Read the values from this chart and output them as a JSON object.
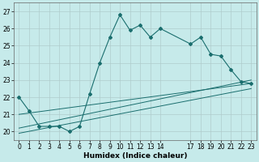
{
  "xlabel": "Humidex (Indice chaleur)",
  "xlim": [
    -0.5,
    23.5
  ],
  "ylim": [
    19.5,
    27.5
  ],
  "yticks": [
    20,
    21,
    22,
    23,
    24,
    25,
    26,
    27
  ],
  "xticks": [
    0,
    1,
    2,
    3,
    4,
    5,
    6,
    7,
    8,
    9,
    10,
    11,
    12,
    13,
    14,
    17,
    18,
    19,
    20,
    21,
    22,
    23
  ],
  "bg_color": "#c6eaea",
  "grid_color": "#b0cccc",
  "line_color": "#1a6e6e",
  "main_x": [
    0,
    1,
    2,
    3,
    4,
    5,
    6,
    7,
    8,
    9,
    10,
    11,
    12,
    13,
    14,
    17,
    18,
    19,
    20,
    21,
    22,
    23
  ],
  "main_y": [
    22.0,
    21.2,
    20.3,
    20.3,
    20.3,
    20.0,
    20.3,
    22.2,
    24.0,
    25.5,
    26.8,
    25.9,
    26.2,
    25.5,
    26.0,
    25.1,
    25.5,
    24.5,
    24.4,
    23.6,
    22.9,
    22.8
  ],
  "trend1_x": [
    0,
    23
  ],
  "trend1_y": [
    21.0,
    22.8
  ],
  "trend2_x": [
    0,
    23
  ],
  "trend2_y": [
    20.2,
    23.0
  ],
  "trend3_x": [
    0,
    23
  ],
  "trend3_y": [
    19.9,
    22.5
  ]
}
